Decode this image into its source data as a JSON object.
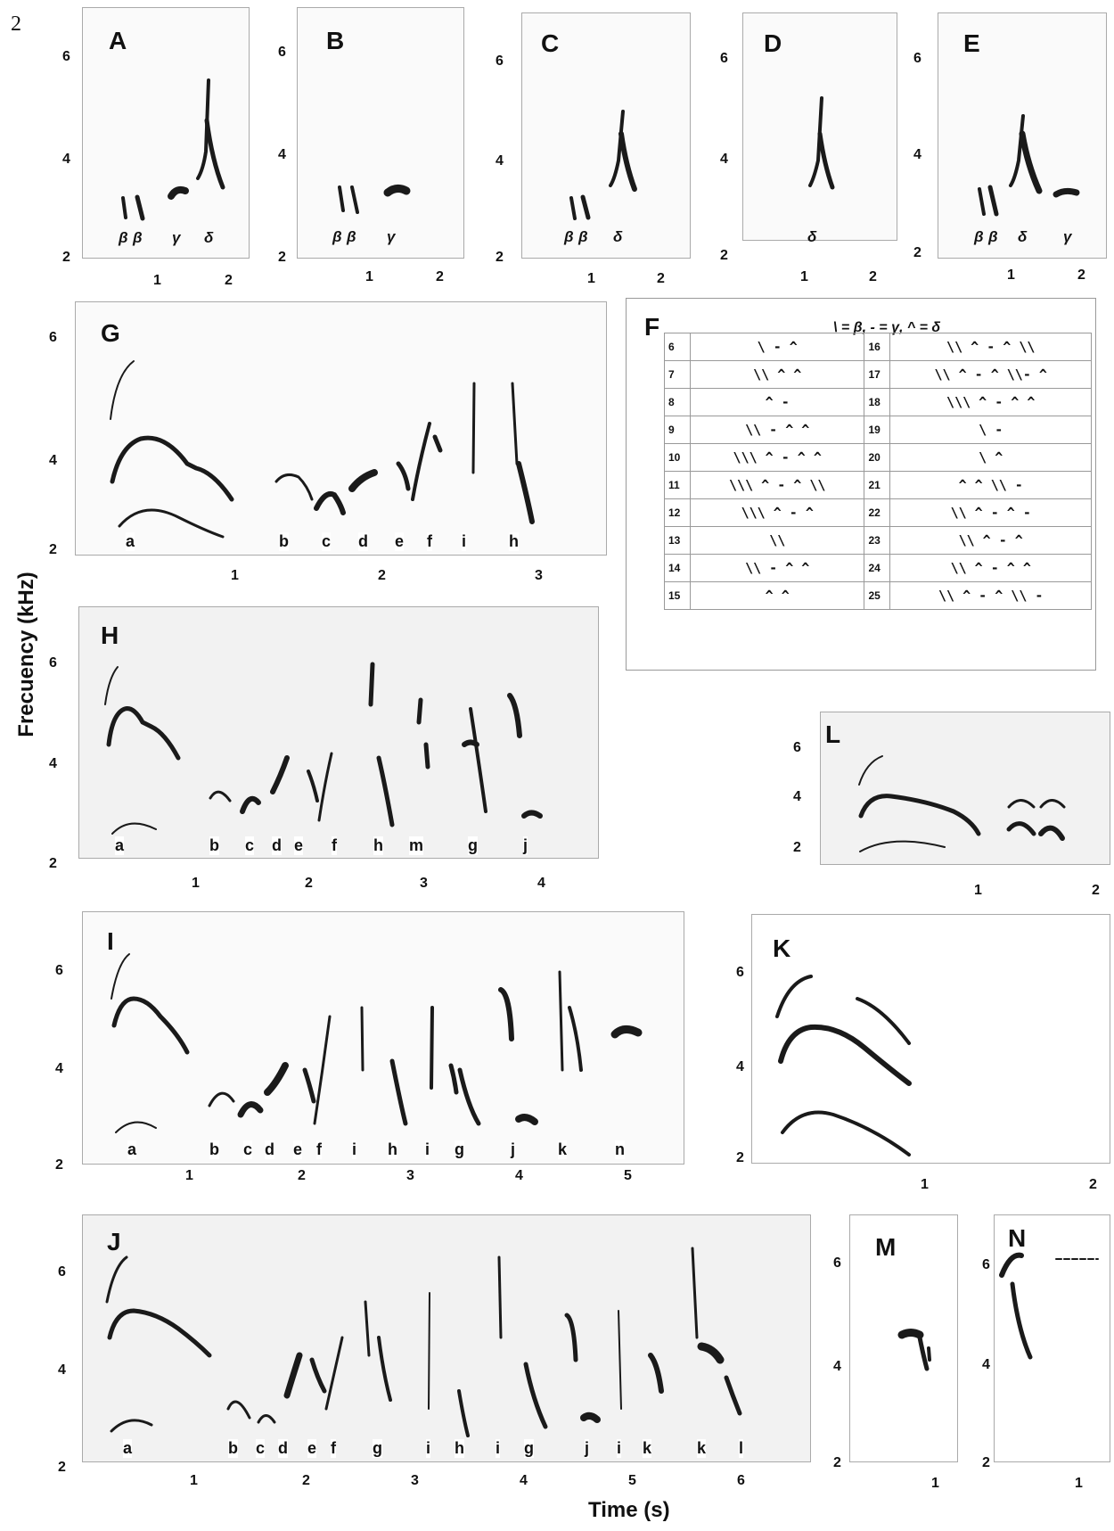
{
  "figure_number": "2",
  "axis": {
    "y_title": "Frecuency (kHz)",
    "x_title": "Time (s)"
  },
  "panels": {
    "A": {
      "label": "A",
      "yticks": [
        "6",
        "4",
        "2"
      ],
      "xticks": [
        "1",
        "2"
      ],
      "notes": [
        "β",
        "β",
        "γ",
        "δ"
      ]
    },
    "B": {
      "label": "B",
      "yticks": [
        "6",
        "4",
        "2"
      ],
      "xticks": [
        "1",
        "2"
      ],
      "notes": [
        "β",
        "β",
        "γ"
      ]
    },
    "C": {
      "label": "C",
      "yticks": [
        "6",
        "4",
        "2"
      ],
      "xticks": [
        "1",
        "2"
      ],
      "notes": [
        "β",
        "β",
        "δ"
      ]
    },
    "D": {
      "label": "D",
      "yticks": [
        "6",
        "4",
        "2"
      ],
      "xticks": [
        "1",
        "2"
      ],
      "notes": [
        "δ"
      ]
    },
    "E": {
      "label": "E",
      "yticks": [
        "6",
        "4",
        "2"
      ],
      "xticks": [
        "1",
        "2"
      ],
      "notes": [
        "β",
        "β",
        "δ",
        "γ"
      ]
    },
    "G": {
      "label": "G",
      "yticks": [
        "6",
        "4",
        "2"
      ],
      "xticks": [
        "1",
        "2",
        "3"
      ],
      "notes": [
        "a",
        "b",
        "c",
        "d",
        "e",
        "f",
        "i",
        "h"
      ]
    },
    "H": {
      "label": "H",
      "yticks": [
        "6",
        "4",
        "2"
      ],
      "xticks": [
        "1",
        "2",
        "3",
        "4"
      ],
      "notes": [
        "a",
        "b",
        "c",
        "d",
        "e",
        "f",
        "h",
        "m",
        "g",
        "j"
      ]
    },
    "I": {
      "label": "I",
      "yticks": [
        "6",
        "4",
        "2"
      ],
      "xticks": [
        "1",
        "2",
        "3",
        "4",
        "5"
      ],
      "notes": [
        "a",
        "b",
        "c",
        "d",
        "e",
        "f",
        "i",
        "h",
        "i",
        "g",
        "j",
        "k",
        "n"
      ]
    },
    "J": {
      "label": "J",
      "yticks": [
        "6",
        "4",
        "2"
      ],
      "xticks": [
        "1",
        "2",
        "3",
        "4",
        "5",
        "6"
      ],
      "notes": [
        "a",
        "b",
        "c",
        "d",
        "e",
        "f",
        "g",
        "i",
        "h",
        "i",
        "g",
        "j",
        "i",
        "k",
        "k",
        "l"
      ]
    },
    "K": {
      "label": "K",
      "yticks": [
        "6",
        "4",
        "2"
      ],
      "xticks": [
        "1",
        "2"
      ]
    },
    "L": {
      "label": "L",
      "yticks": [
        "6",
        "4",
        "2"
      ],
      "xticks": [
        "1",
        "2"
      ]
    },
    "M": {
      "label": "M",
      "yticks": [
        "6",
        "4",
        "2"
      ],
      "xticks": [
        "1"
      ]
    },
    "N": {
      "label": "N",
      "yticks": [
        "6",
        "4",
        "2"
      ],
      "xticks": [
        "1"
      ]
    }
  },
  "legend_table": {
    "label": "F",
    "key": "\\ = β,  - = γ, ^ = δ",
    "rows": [
      {
        "n1": "6",
        "s1": "\\ - ^",
        "n2": "16",
        "s2": "\\\\ ^ - ^ \\\\"
      },
      {
        "n1": "7",
        "s1": "\\\\ ^ ^",
        "n2": "17",
        "s2": "\\\\ ^ - ^ \\\\- ^"
      },
      {
        "n1": "8",
        "s1": "^ -",
        "n2": "18",
        "s2": "\\\\\\ ^ - ^ ^"
      },
      {
        "n1": "9",
        "s1": "\\\\ - ^ ^",
        "n2": "19",
        "s2": "\\ -"
      },
      {
        "n1": "10",
        "s1": "\\\\\\ ^ - ^ ^",
        "n2": "20",
        "s2": "\\ ^"
      },
      {
        "n1": "11",
        "s1": "\\\\\\ ^ - ^ \\\\",
        "n2": "21",
        "s2": "^ ^ \\\\ -"
      },
      {
        "n1": "12",
        "s1": "\\\\\\ ^ - ^",
        "n2": "22",
        "s2": "\\\\ ^ - ^ -"
      },
      {
        "n1": "13",
        "s1": "\\\\",
        "n2": "23",
        "s2": "\\\\ ^ - ^"
      },
      {
        "n1": "14",
        "s1": "\\\\ - ^ ^",
        "n2": "24",
        "s2": "\\\\ ^ - ^ ^"
      },
      {
        "n1": "15",
        "s1": "^ ^",
        "n2": "25",
        "s2": "\\\\ ^ - ^ \\\\ -"
      }
    ]
  }
}
